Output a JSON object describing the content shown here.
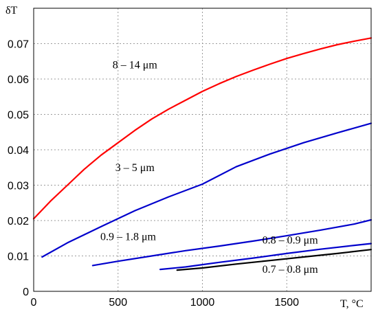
{
  "chart_data": {
    "type": "line",
    "title": "",
    "xlabel": "T, °C",
    "ylabel": "δT",
    "xlim": [
      0,
      2000
    ],
    "ylim": [
      0,
      0.08
    ],
    "grid": true,
    "x_ticks": [
      0,
      500,
      1000,
      1500
    ],
    "y_ticks": [
      0,
      0.01,
      0.02,
      0.03,
      0.04,
      0.05,
      0.06,
      0.07
    ],
    "x_tick_labels": [
      "0",
      "500",
      "1000",
      "1500"
    ],
    "y_tick_labels": [
      "0",
      "0.01",
      "0.02",
      "0.03",
      "0.04",
      "0.05",
      "0.06",
      "0.07"
    ],
    "series": [
      {
        "name": "8 – 14 μm",
        "color": "#ff0000",
        "x": [
          0,
          100,
          200,
          300,
          400,
          500,
          600,
          700,
          800,
          900,
          1000,
          1100,
          1200,
          1300,
          1400,
          1500,
          1600,
          1700,
          1800,
          1900,
          2000
        ],
        "y": [
          0.0205,
          0.0255,
          0.03,
          0.0345,
          0.0385,
          0.042,
          0.0455,
          0.0487,
          0.0515,
          0.054,
          0.0565,
          0.0587,
          0.0607,
          0.0625,
          0.0642,
          0.0658,
          0.0672,
          0.0685,
          0.0697,
          0.0707,
          0.0716
        ]
      },
      {
        "name": "3 – 5 μm",
        "color": "#0000cc",
        "x": [
          50,
          200,
          400,
          600,
          800,
          1000,
          1200,
          1400,
          1600,
          1800,
          2000
        ],
        "y": [
          0.0097,
          0.0137,
          0.0183,
          0.0228,
          0.0267,
          0.0303,
          0.0352,
          0.0388,
          0.042,
          0.0448,
          0.0475
        ]
      },
      {
        "name": "0.9 – 1.8 μm",
        "color": "#0000cc",
        "x": [
          350,
          500,
          700,
          900,
          1100,
          1300,
          1500,
          1700,
          1900,
          2000
        ],
        "y": [
          0.0073,
          0.0085,
          0.01,
          0.0115,
          0.0128,
          0.0142,
          0.0157,
          0.0173,
          0.019,
          0.0202
        ]
      },
      {
        "name": "0.8 – 0.9 μm",
        "color": "#0000cc",
        "x": [
          750,
          900,
          1100,
          1300,
          1500,
          1700,
          1900,
          2000
        ],
        "y": [
          0.0062,
          0.0069,
          0.0082,
          0.0094,
          0.0107,
          0.0119,
          0.013,
          0.0135
        ]
      },
      {
        "name": "0.7 – 0.8 μm",
        "color": "#000000",
        "x": [
          850,
          1000,
          1200,
          1400,
          1600,
          1800,
          2000
        ],
        "y": [
          0.006,
          0.0066,
          0.0077,
          0.0087,
          0.0097,
          0.0107,
          0.0118
        ]
      }
    ],
    "annotations": [
      "8 – 14 μm",
      "3 – 5 μm",
      "0.9 – 1.8 μm",
      "0.8 – 0.9 μm",
      "0.7 – 0.8 μm"
    ]
  }
}
